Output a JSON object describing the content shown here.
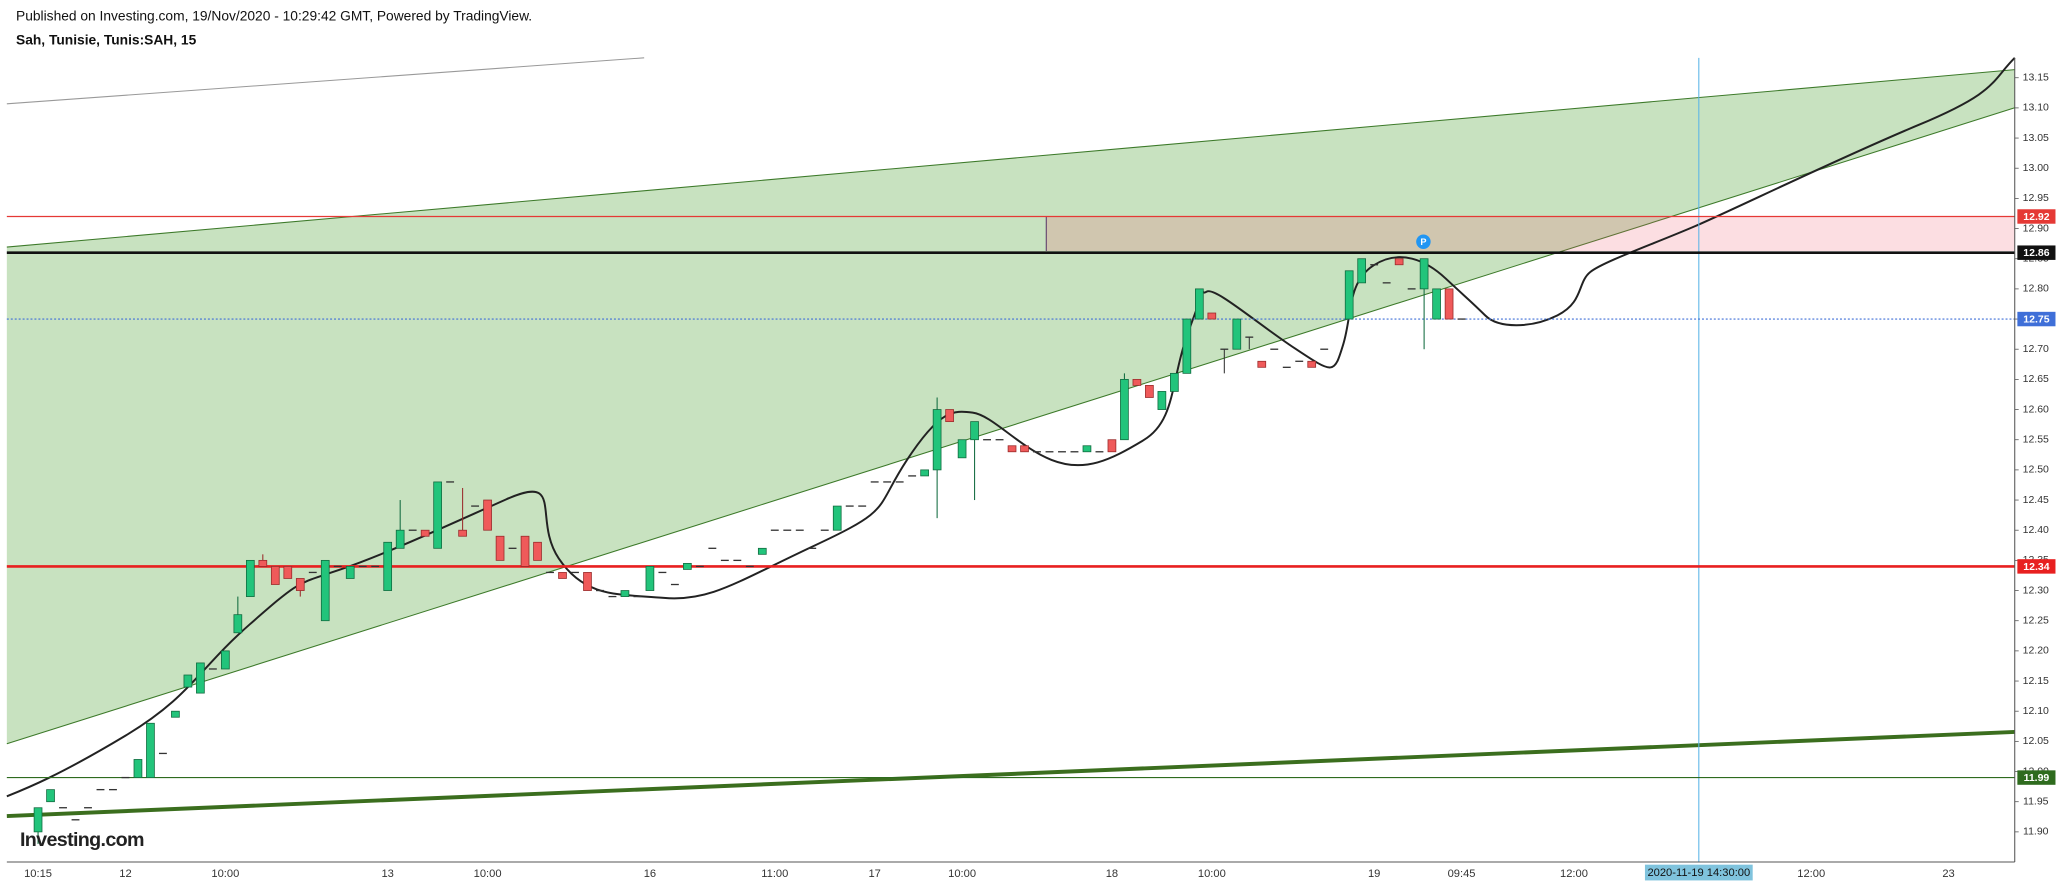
{
  "chart_data": {
    "type": "candlestick",
    "published": "Published on Investing.com, 19/Nov/2020 - 10:29:42 GMT, Powered by TradingView.",
    "title": "Sah, Tunisie, Tunis:SAH, 15",
    "watermark": "Investing.com",
    "up_color": "#22c47b",
    "down_color": "#ef5a5a",
    "categories": [
      "10:15",
      null,
      null,
      null,
      null,
      null,
      null,
      "12",
      null,
      null,
      null,
      null,
      null,
      null,
      null,
      "10:00",
      null,
      null,
      null,
      null,
      null,
      null,
      null,
      null,
      null,
      null,
      null,
      null,
      "13",
      null,
      null,
      null,
      null,
      null,
      null,
      null,
      "10:00",
      null,
      null,
      null,
      null,
      null,
      null,
      null,
      null,
      null,
      null,
      null,
      null,
      "16",
      null,
      null,
      null,
      null,
      null,
      null,
      null,
      null,
      null,
      "11:00",
      null,
      null,
      null,
      null,
      null,
      null,
      null,
      "17",
      null,
      null,
      null,
      null,
      null,
      null,
      "10:00",
      null,
      null,
      null,
      null,
      null,
      null,
      null,
      null,
      null,
      null,
      null,
      "18",
      null,
      null,
      null,
      null,
      null,
      null,
      null,
      "10:00",
      null,
      null,
      null,
      null,
      null,
      null,
      null,
      null,
      null,
      null,
      null,
      null,
      "19",
      null,
      null,
      null,
      null,
      null,
      null,
      "09:45",
      null,
      null,
      null,
      null,
      null,
      null,
      null,
      null,
      "12:00",
      null,
      null,
      null,
      null,
      null,
      null,
      null,
      null,
      null,
      "2020-11-19 14:30:00",
      null,
      null,
      null,
      null,
      null,
      null,
      null,
      null,
      "12:00",
      null,
      null,
      null,
      null,
      null,
      null,
      null,
      null,
      null,
      null,
      "23",
      null,
      null,
      null,
      null,
      null
    ],
    "ohlc": [
      [
        11.9,
        11.94,
        11.88,
        11.94
      ],
      [
        11.95,
        11.97,
        11.95,
        11.97
      ],
      [
        11.94,
        11.94,
        11.94,
        11.94
      ],
      [
        11.92,
        11.92,
        11.92,
        11.92
      ],
      [
        11.94,
        11.94,
        11.94,
        11.94
      ],
      [
        11.97,
        11.97,
        11.97,
        11.97
      ],
      [
        11.97,
        11.97,
        11.97,
        11.97
      ],
      [
        11.99,
        11.99,
        11.99,
        11.99
      ],
      [
        11.99,
        12.02,
        11.99,
        12.02
      ],
      [
        11.99,
        12.08,
        11.99,
        12.08
      ],
      [
        12.03,
        12.03,
        12.03,
        12.03
      ],
      [
        12.09,
        12.1,
        12.09,
        12.1
      ],
      [
        12.14,
        12.16,
        12.14,
        12.16
      ],
      [
        12.13,
        12.18,
        12.13,
        12.18
      ],
      [
        12.17,
        12.17,
        12.17,
        12.17
      ],
      [
        12.17,
        12.2,
        12.17,
        12.2
      ],
      [
        12.23,
        12.29,
        12.23,
        12.26
      ],
      [
        12.29,
        12.35,
        12.29,
        12.35
      ],
      [
        12.35,
        12.36,
        12.34,
        12.34
      ],
      [
        12.34,
        12.34,
        12.31,
        12.31
      ],
      [
        12.34,
        12.34,
        12.32,
        12.32
      ],
      [
        12.32,
        12.32,
        12.29,
        12.3
      ],
      [
        12.33,
        12.33,
        12.33,
        12.33
      ],
      [
        12.25,
        12.35,
        12.25,
        12.35
      ],
      [
        12.34,
        12.34,
        12.34,
        12.34
      ],
      [
        12.32,
        12.34,
        12.32,
        12.34
      ],
      [
        12.34,
        12.34,
        12.34,
        12.34
      ],
      [
        12.34,
        12.34,
        12.34,
        12.34
      ],
      [
        12.3,
        12.38,
        12.3,
        12.38
      ],
      [
        12.37,
        12.45,
        12.37,
        12.4
      ],
      [
        12.4,
        12.4,
        12.4,
        12.4
      ],
      [
        12.4,
        12.4,
        12.39,
        12.39
      ],
      [
        12.37,
        12.48,
        12.37,
        12.48
      ],
      [
        12.48,
        12.48,
        12.48,
        12.48
      ],
      [
        12.4,
        12.47,
        12.39,
        12.39
      ],
      [
        12.44,
        12.44,
        12.44,
        12.44
      ],
      [
        12.45,
        12.45,
        12.4,
        12.4
      ],
      [
        12.39,
        12.39,
        12.35,
        12.35
      ],
      [
        12.37,
        12.37,
        12.37,
        12.37
      ],
      [
        12.39,
        12.39,
        12.34,
        12.34
      ],
      [
        12.38,
        12.38,
        12.35,
        12.35
      ],
      [
        12.33,
        12.33,
        12.33,
        12.33
      ],
      [
        12.33,
        12.33,
        12.32,
        12.32
      ],
      [
        12.33,
        12.33,
        12.33,
        12.33
      ],
      [
        12.33,
        12.33,
        12.3,
        12.3
      ],
      [
        12.3,
        12.3,
        12.3,
        12.3
      ],
      [
        12.29,
        12.29,
        12.29,
        12.29
      ],
      [
        12.29,
        12.3,
        12.29,
        12.3
      ],
      [
        12.29,
        12.29,
        12.29,
        12.29
      ],
      [
        12.3,
        12.34,
        12.3,
        12.34
      ],
      [
        12.33,
        12.33,
        12.33,
        12.33
      ],
      [
        12.31,
        12.31,
        12.31,
        12.31
      ],
      [
        12.335,
        12.345,
        12.335,
        12.345
      ],
      [
        12.34,
        12.34,
        12.34,
        12.34
      ],
      [
        12.37,
        12.37,
        12.37,
        12.37
      ],
      [
        12.35,
        12.35,
        12.35,
        12.35
      ],
      [
        12.35,
        12.35,
        12.35,
        12.35
      ],
      [
        12.34,
        12.34,
        12.34,
        12.34
      ],
      [
        12.36,
        12.37,
        12.36,
        12.37
      ],
      [
        12.4,
        12.4,
        12.4,
        12.4
      ],
      [
        12.4,
        12.4,
        12.4,
        12.4
      ],
      [
        12.4,
        12.4,
        12.4,
        12.4
      ],
      [
        12.37,
        12.37,
        12.37,
        12.37
      ],
      [
        12.4,
        12.4,
        12.4,
        12.4
      ],
      [
        12.4,
        12.44,
        12.4,
        12.44
      ],
      [
        12.44,
        12.44,
        12.44,
        12.44
      ],
      [
        12.44,
        12.44,
        12.44,
        12.44
      ],
      [
        12.48,
        12.48,
        12.48,
        12.48
      ],
      [
        12.48,
        12.48,
        12.48,
        12.48
      ],
      [
        12.48,
        12.48,
        12.48,
        12.48
      ],
      [
        12.49,
        12.49,
        12.49,
        12.49
      ],
      [
        12.49,
        12.5,
        12.49,
        12.5
      ],
      [
        12.5,
        12.62,
        12.42,
        12.6
      ],
      [
        12.6,
        12.6,
        12.58,
        12.58
      ],
      [
        12.52,
        12.55,
        12.52,
        12.55
      ],
      [
        12.55,
        12.58,
        12.45,
        12.58
      ],
      [
        12.55,
        12.55,
        12.55,
        12.55
      ],
      [
        12.55,
        12.55,
        12.55,
        12.55
      ],
      [
        12.54,
        12.54,
        12.53,
        12.53
      ],
      [
        12.54,
        12.54,
        12.53,
        12.53
      ],
      [
        12.53,
        12.53,
        12.53,
        12.53
      ],
      [
        12.53,
        12.53,
        12.53,
        12.53
      ],
      [
        12.53,
        12.53,
        12.53,
        12.53
      ],
      [
        12.53,
        12.53,
        12.53,
        12.53
      ],
      [
        12.53,
        12.54,
        12.53,
        12.54
      ],
      [
        12.53,
        12.53,
        12.53,
        12.53
      ],
      [
        12.55,
        12.55,
        12.53,
        12.53
      ],
      [
        12.55,
        12.66,
        12.55,
        12.65
      ],
      [
        12.65,
        12.65,
        12.64,
        12.64
      ],
      [
        12.64,
        12.64,
        12.62,
        12.62
      ],
      [
        12.6,
        12.63,
        12.6,
        12.63
      ],
      [
        12.63,
        12.66,
        12.63,
        12.66
      ],
      [
        12.66,
        12.75,
        12.66,
        12.75
      ],
      [
        12.75,
        12.8,
        12.75,
        12.8
      ],
      [
        12.76,
        12.76,
        12.75,
        12.75
      ],
      [
        12.7,
        12.7,
        12.66,
        12.7
      ],
      [
        12.7,
        12.75,
        12.7,
        12.75
      ],
      [
        12.72,
        12.72,
        12.7,
        12.72
      ],
      [
        12.68,
        12.68,
        12.67,
        12.67
      ],
      [
        12.7,
        12.7,
        12.7,
        12.7
      ],
      [
        12.67,
        12.67,
        12.67,
        12.67
      ],
      [
        12.68,
        12.68,
        12.68,
        12.68
      ],
      [
        12.68,
        12.68,
        12.67,
        12.67
      ],
      [
        12.7,
        12.7,
        12.7,
        12.7
      ],
      null,
      [
        12.75,
        12.83,
        12.75,
        12.83
      ],
      [
        12.81,
        12.85,
        12.81,
        12.85
      ],
      [
        12.84,
        12.84,
        12.84,
        12.84
      ],
      [
        12.81,
        12.81,
        12.81,
        12.81
      ],
      [
        12.85,
        12.85,
        12.84,
        12.84
      ],
      [
        12.8,
        12.8,
        12.8,
        12.8
      ],
      [
        12.8,
        12.85,
        12.7,
        12.85
      ],
      [
        12.75,
        12.8,
        12.75,
        12.8
      ],
      [
        12.8,
        12.8,
        12.75,
        12.75
      ],
      [
        12.75,
        12.75,
        12.75,
        12.75
      ],
      null,
      null,
      null,
      null,
      null,
      null,
      null,
      null,
      null,
      null,
      null,
      null,
      null,
      null,
      null,
      null,
      null,
      null,
      null,
      null,
      null,
      null,
      null,
      null,
      null,
      null,
      null,
      null,
      null,
      null,
      null,
      null,
      null,
      null,
      null,
      null,
      null,
      null,
      null,
      null,
      null,
      null,
      null,
      null
    ],
    "levels": [
      {
        "value": 12.92,
        "color": "#e53935"
      },
      {
        "value": 12.86,
        "color": "#111111"
      },
      {
        "value": 12.75,
        "color": "#3f6fd8"
      },
      {
        "value": 12.34,
        "color": "#e82020"
      },
      {
        "value": 11.99,
        "color": "#2e6b1e"
      }
    ],
    "xlim": [
      -2.5,
      158.3
    ],
    "ylim": [
      11.85,
      13.183
    ],
    "yticks": [
      {
        "value": 11.9,
        "label": "11.90"
      },
      11.95,
      {
        "value": 12.0,
        "label": "12.00"
      },
      12.05,
      {
        "value": 12.1,
        "label": "12.10"
      },
      12.15,
      {
        "value": 12.2,
        "label": "12.20"
      },
      12.25,
      {
        "value": 12.3,
        "label": "12.30"
      },
      12.35,
      {
        "value": 12.4,
        "label": "12.40"
      },
      12.45,
      {
        "value": 12.5,
        "label": "12.50"
      },
      12.55,
      {
        "value": 12.6,
        "label": "12.60"
      },
      12.65,
      {
        "value": 12.7,
        "label": "12.70"
      },
      12.75,
      {
        "value": 12.8,
        "label": "12.80"
      },
      12.85,
      {
        "value": 12.9,
        "label": "12.90"
      },
      12.95,
      {
        "value": 13.0,
        "label": "13.00"
      },
      13.05,
      {
        "value": 13.1,
        "label": "13.10"
      },
      13.15
    ]
  }
}
